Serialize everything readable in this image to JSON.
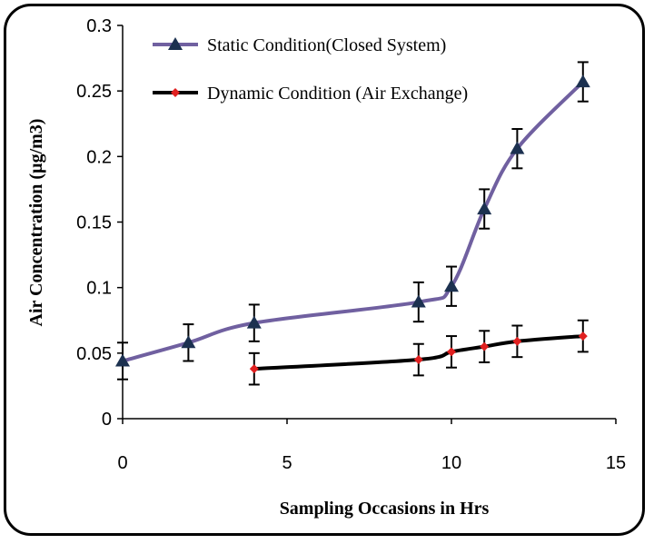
{
  "chart_data": {
    "type": "line",
    "xlabel": "Sampling Occasions in Hrs",
    "ylabel": "Air Concentration (µg/m3)",
    "xlim": [
      0,
      15
    ],
    "ylim": [
      0,
      0.3
    ],
    "x_ticks": [
      "0",
      "5",
      "10",
      "15"
    ],
    "y_ticks": [
      "0",
      "0.05",
      "0.1",
      "0.15",
      "0.2",
      "0.25",
      "0.3"
    ],
    "grid": false,
    "legend_position": "top-center",
    "series": [
      {
        "name": "Static Condition(Closed System)",
        "color": "#7060a0",
        "marker_color": "#1c3150",
        "marker": "triangle",
        "x": [
          0,
          2,
          4,
          9,
          10,
          11,
          12,
          14
        ],
        "y": [
          0.044,
          0.058,
          0.073,
          0.089,
          0.101,
          0.16,
          0.206,
          0.257
        ],
        "err": [
          0.014,
          0.014,
          0.014,
          0.015,
          0.015,
          0.015,
          0.015,
          0.015
        ]
      },
      {
        "name": "Dynamic Condition (Air Exchange)",
        "color": "#000000",
        "marker_color": "#e02020",
        "marker": "diamond",
        "x": [
          4,
          9,
          10,
          11,
          12,
          14
        ],
        "y": [
          0.038,
          0.045,
          0.051,
          0.055,
          0.059,
          0.063
        ],
        "err": [
          0.012,
          0.012,
          0.012,
          0.012,
          0.012,
          0.012
        ]
      }
    ]
  }
}
